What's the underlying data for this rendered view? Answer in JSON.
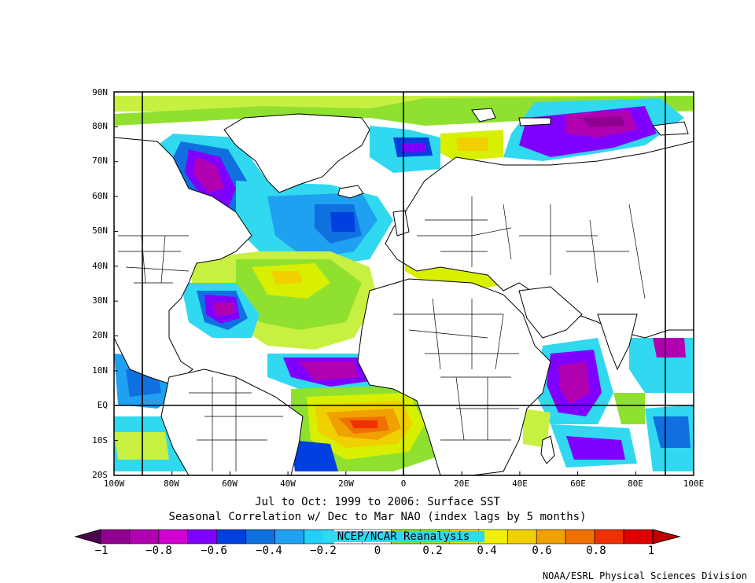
{
  "map": {
    "lat_labels": [
      "90N",
      "80N",
      "70N",
      "60N",
      "50N",
      "40N",
      "30N",
      "20N",
      "10N",
      "EQ",
      "10S",
      "20S"
    ],
    "lon_labels": [
      "100W",
      "80W",
      "60W",
      "40W",
      "20W",
      "0",
      "20E",
      "40E",
      "60E",
      "80E",
      "100E"
    ],
    "extent": {
      "lon_min": -100,
      "lon_max": 100,
      "lat_min": -20,
      "lat_max": 90
    }
  },
  "titles": {
    "line1": "Jul to Oct: 1999 to 2006: Surface SST",
    "line2": "Seasonal Correlation w/ Dec to Mar NAO (index lags by 5 months)"
  },
  "colorbar": {
    "watermark": "NCEP/NCAR Reanalysis",
    "tick_labels": [
      "−1",
      "−0.8",
      "−0.6",
      "−0.4",
      "−0.2",
      "0",
      "0.2",
      "0.4",
      "0.6",
      "0.8",
      "1"
    ],
    "colors": [
      "#500050",
      "#900090",
      "#b000b0",
      "#d000d0",
      "#8000ff",
      "#0040e0",
      "#1070e0",
      "#20a0f0",
      "#20d0f8",
      "#ffffff",
      "#ffffff",
      "#90e030",
      "#b0e020",
      "#d8f000",
      "#f0f000",
      "#f0d000",
      "#f0a000",
      "#f07000",
      "#f03000",
      "#e00000",
      "#c00000"
    ]
  },
  "credit": "NOAA/ESRL Physical Sciences Division"
}
